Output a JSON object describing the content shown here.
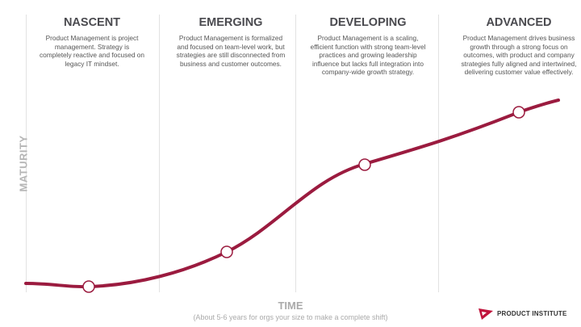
{
  "stages": [
    {
      "title": "NASCENT",
      "text": "Product Management is project management. Strategy is completely reactive and focused on legacy IT mindset."
    },
    {
      "title": "EMERGING",
      "text": "Product Management is formalized and focused on team-level work, but strategies are still disconnected from business and customer outcomes."
    },
    {
      "title": "DEVELOPING",
      "text": "Product Management is a scaling, efficient function with strong team-level practices and growing leadership influence but lacks full integration into company-wide growth strategy."
    },
    {
      "title": "ADVANCED",
      "text": "Product Management drives business growth through a strong focus on outcomes, with product and company strategies fully aligned and intertwined, delivering customer value effectively."
    }
  ],
  "axes": {
    "y": "MATURITY",
    "x": "TIME",
    "x_note": "(About 5-6 years for orgs your size to make a complete shift)"
  },
  "logo": {
    "text": "PRODUCT INSTITUTE"
  },
  "colors": {
    "curve": "#9b1b3f",
    "logo": "#c0143c"
  }
}
